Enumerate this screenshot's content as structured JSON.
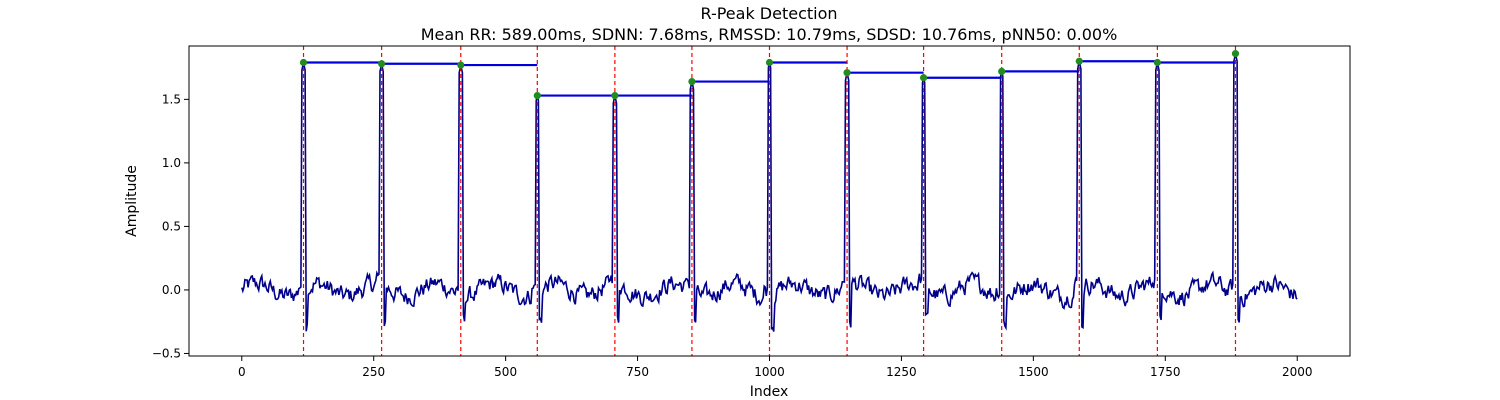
{
  "chart_data": {
    "type": "line",
    "title": "R-Peak Detection",
    "subtitle": "Mean RR: 589.00ms, SDNN: 7.68ms, RMSSD: 10.79ms, SDSD: 10.76ms, pNN50: 0.00%",
    "xlabel": "Index",
    "ylabel": "Amplitude",
    "xlim": [
      -100,
      2100
    ],
    "ylim": [
      -0.52,
      1.92
    ],
    "x_ticks": [
      0,
      250,
      500,
      750,
      1000,
      1250,
      1500,
      1750,
      2000
    ],
    "y_ticks": [
      -0.5,
      0.0,
      0.5,
      1.0,
      1.5
    ],
    "grid": false,
    "signal": {
      "color": "#00008b",
      "x_start": 0,
      "x_end": 2000,
      "baseline_min": -0.4,
      "baseline_max": 0.22
    },
    "r_peaks": {
      "x": [
        117,
        265,
        415,
        560,
        707,
        853,
        1000,
        1147,
        1292,
        1440,
        1587,
        1735,
        1883
      ],
      "y": [
        1.79,
        1.78,
        1.77,
        1.53,
        1.53,
        1.64,
        1.79,
        1.71,
        1.67,
        1.72,
        1.8,
        1.79,
        1.86
      ],
      "marker_color": "#228b22",
      "line_color": "#ff0000"
    },
    "rr_segments": {
      "color": "#0000dd",
      "segments": [
        {
          "x0": 117,
          "x1": 265,
          "y": 1.79
        },
        {
          "x0": 265,
          "x1": 415,
          "y": 1.78
        },
        {
          "x0": 415,
          "x1": 560,
          "y": 1.77
        },
        {
          "x0": 560,
          "x1": 707,
          "y": 1.53
        },
        {
          "x0": 707,
          "x1": 853,
          "y": 1.53
        },
        {
          "x0": 853,
          "x1": 1000,
          "y": 1.64
        },
        {
          "x0": 1000,
          "x1": 1147,
          "y": 1.79
        },
        {
          "x0": 1147,
          "x1": 1292,
          "y": 1.71
        },
        {
          "x0": 1292,
          "x1": 1440,
          "y": 1.67
        },
        {
          "x0": 1440,
          "x1": 1587,
          "y": 1.72
        },
        {
          "x0": 1587,
          "x1": 1735,
          "y": 1.8
        },
        {
          "x0": 1735,
          "x1": 1883,
          "y": 1.79
        }
      ]
    }
  }
}
